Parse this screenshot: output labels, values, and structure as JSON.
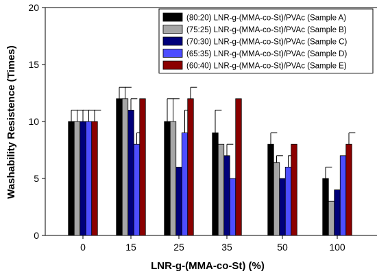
{
  "chart_data": {
    "type": "bar",
    "xlabel": "LNR-g-(MMA-co-St) (%)",
    "ylabel": "Washability Resistence (Times)",
    "ylim": [
      0,
      20
    ],
    "yticks": [
      0,
      5,
      10,
      15,
      20
    ],
    "categories": [
      "0",
      "15",
      "25",
      "35",
      "50",
      "100"
    ],
    "legend_position": "top-right",
    "series": [
      {
        "name": "(80:20) LNR-g-(MMA-co-St)/PVAc (Sample A)",
        "color": "#000000",
        "values": [
          10,
          12,
          10,
          9,
          8,
          5
        ],
        "errors": [
          1,
          1,
          2,
          2,
          1,
          1
        ]
      },
      {
        "name": "(75:25) LNR-g-(MMA-co-St)/PVAc (Sample B)",
        "color": "#a6a6a6",
        "values": [
          10,
          12,
          10,
          8,
          6.4,
          3
        ],
        "errors": [
          1,
          1,
          2,
          0,
          0.6,
          0
        ]
      },
      {
        "name": "(70:30) LNR-g-(MMA-co-St)/PVAc (Sample C)",
        "color": "#00007a",
        "values": [
          10,
          11,
          6,
          7,
          5,
          4
        ],
        "errors": [
          1,
          1,
          0,
          1,
          0,
          0
        ]
      },
      {
        "name": "(65:35) LNR-g-(MMA-co-St)/PVAc (Sample D)",
        "color": "#4d4dff",
        "values": [
          10,
          8,
          9,
          5,
          6,
          7
        ],
        "errors": [
          1,
          1,
          2,
          0,
          1,
          0
        ]
      },
      {
        "name": "(60:40) LNR-g-(MMA-co-St)/PVAc (Sample E)",
        "color": "#8b0000",
        "values": [
          10,
          12,
          12,
          12,
          8,
          8
        ],
        "errors": [
          1,
          0,
          1,
          0,
          0,
          1
        ]
      }
    ]
  }
}
